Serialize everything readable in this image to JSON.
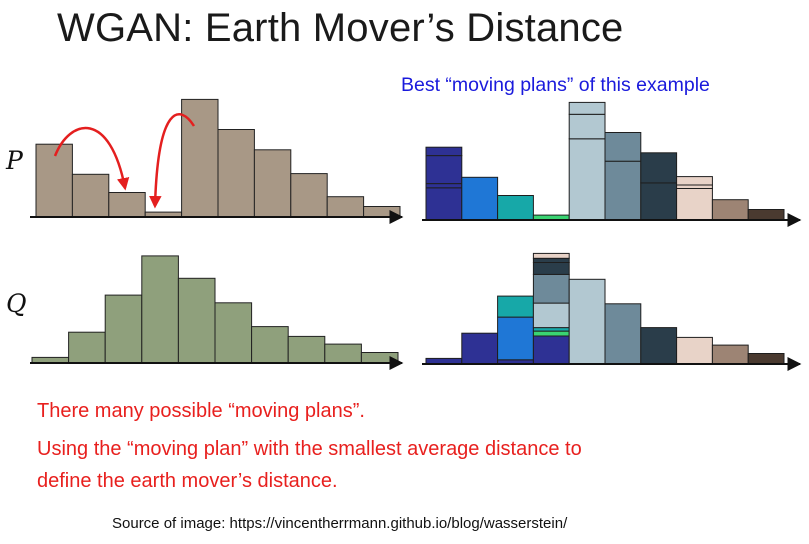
{
  "slide": {
    "title": "WGAN: Earth Mover’s Distance",
    "subtitle": "Best “moving plans” of this example",
    "label_p": "P",
    "label_q": "Q",
    "note_1": "There many possible “moving plans”.",
    "note_2_line1": "Using the “moving plan” with the smallest average distance to",
    "note_2_line2": "define the earth mover’s distance.",
    "source": "Source of image: https://vincentherrmann.github.io/blog/wasserstein/"
  },
  "colors": {
    "p_bar": "#a89886",
    "q_bar": "#8fa07c",
    "arrow": "#e41f1f",
    "axis": "#111111",
    "moving_plan": [
      "#2e3194",
      "#1f77d6",
      "#17a8a8",
      "#3ad472",
      "#b2c8d1",
      "#6e8a9a",
      "#2a3d4a",
      "#e8d3c8",
      "#9d8474",
      "#4a3a30"
    ]
  },
  "chart_data": [
    {
      "type": "bar",
      "name": "P",
      "values": [
        10.4,
        6.1,
        3.5,
        0.7,
        16.8,
        12.5,
        9.6,
        6.2,
        2.9,
        1.5
      ]
    },
    {
      "type": "bar",
      "name": "Q",
      "values": [
        0.8,
        4.4,
        9.7,
        15.3,
        12.1,
        8.6,
        5.2,
        3.8,
        2.7,
        1.5
      ]
    },
    {
      "type": "bar",
      "name": "P moving plan",
      "stacks": [
        [
          {
            "c": 0,
            "h": 4.6
          },
          {
            "c": 0,
            "h": 0.6
          },
          {
            "c": 0,
            "h": 4.0
          },
          {
            "c": 0,
            "h": 1.2
          }
        ],
        [
          {
            "c": 1,
            "h": 6.1
          }
        ],
        [
          {
            "c": 2,
            "h": 3.5
          }
        ],
        [
          {
            "c": 3,
            "h": 0.7
          }
        ],
        [
          {
            "c": 4,
            "h": 11.6
          },
          {
            "c": 4,
            "h": 3.5
          },
          {
            "c": 4,
            "h": 1.7
          }
        ],
        [
          {
            "c": 5,
            "h": 8.4
          },
          {
            "c": 5,
            "h": 4.1
          }
        ],
        [
          {
            "c": 6,
            "h": 5.3
          },
          {
            "c": 6,
            "h": 4.3
          }
        ],
        [
          {
            "c": 7,
            "h": 4.5
          },
          {
            "c": 7,
            "h": 0.5
          },
          {
            "c": 7,
            "h": 1.2
          }
        ],
        [
          {
            "c": 8,
            "h": 2.9
          }
        ],
        [
          {
            "c": 9,
            "h": 1.5
          }
        ]
      ]
    },
    {
      "type": "bar",
      "name": "Q moving plan",
      "stacks": [
        [
          {
            "c": 0,
            "h": 0.8
          }
        ],
        [
          {
            "c": 0,
            "h": 4.4
          }
        ],
        [
          {
            "c": 0,
            "h": 0.6
          },
          {
            "c": 1,
            "h": 6.1
          },
          {
            "c": 2,
            "h": 3.0
          }
        ],
        [
          {
            "c": 0,
            "h": 4.0
          },
          {
            "c": 3,
            "h": 0.7
          },
          {
            "c": 2,
            "h": 0.5
          },
          {
            "c": 4,
            "h": 3.5
          },
          {
            "c": 5,
            "h": 4.1
          },
          {
            "c": 6,
            "h": 1.7
          },
          {
            "c": 6,
            "h": 0.6
          },
          {
            "c": 7,
            "h": 0.7
          }
        ],
        [
          {
            "c": 4,
            "h": 12.1
          }
        ],
        [
          {
            "c": 5,
            "h": 8.6
          }
        ],
        [
          {
            "c": 6,
            "h": 5.2
          }
        ],
        [
          {
            "c": 7,
            "h": 3.8
          }
        ],
        [
          {
            "c": 8,
            "h": 2.7
          }
        ],
        [
          {
            "c": 9,
            "h": 1.5
          }
        ]
      ]
    }
  ]
}
